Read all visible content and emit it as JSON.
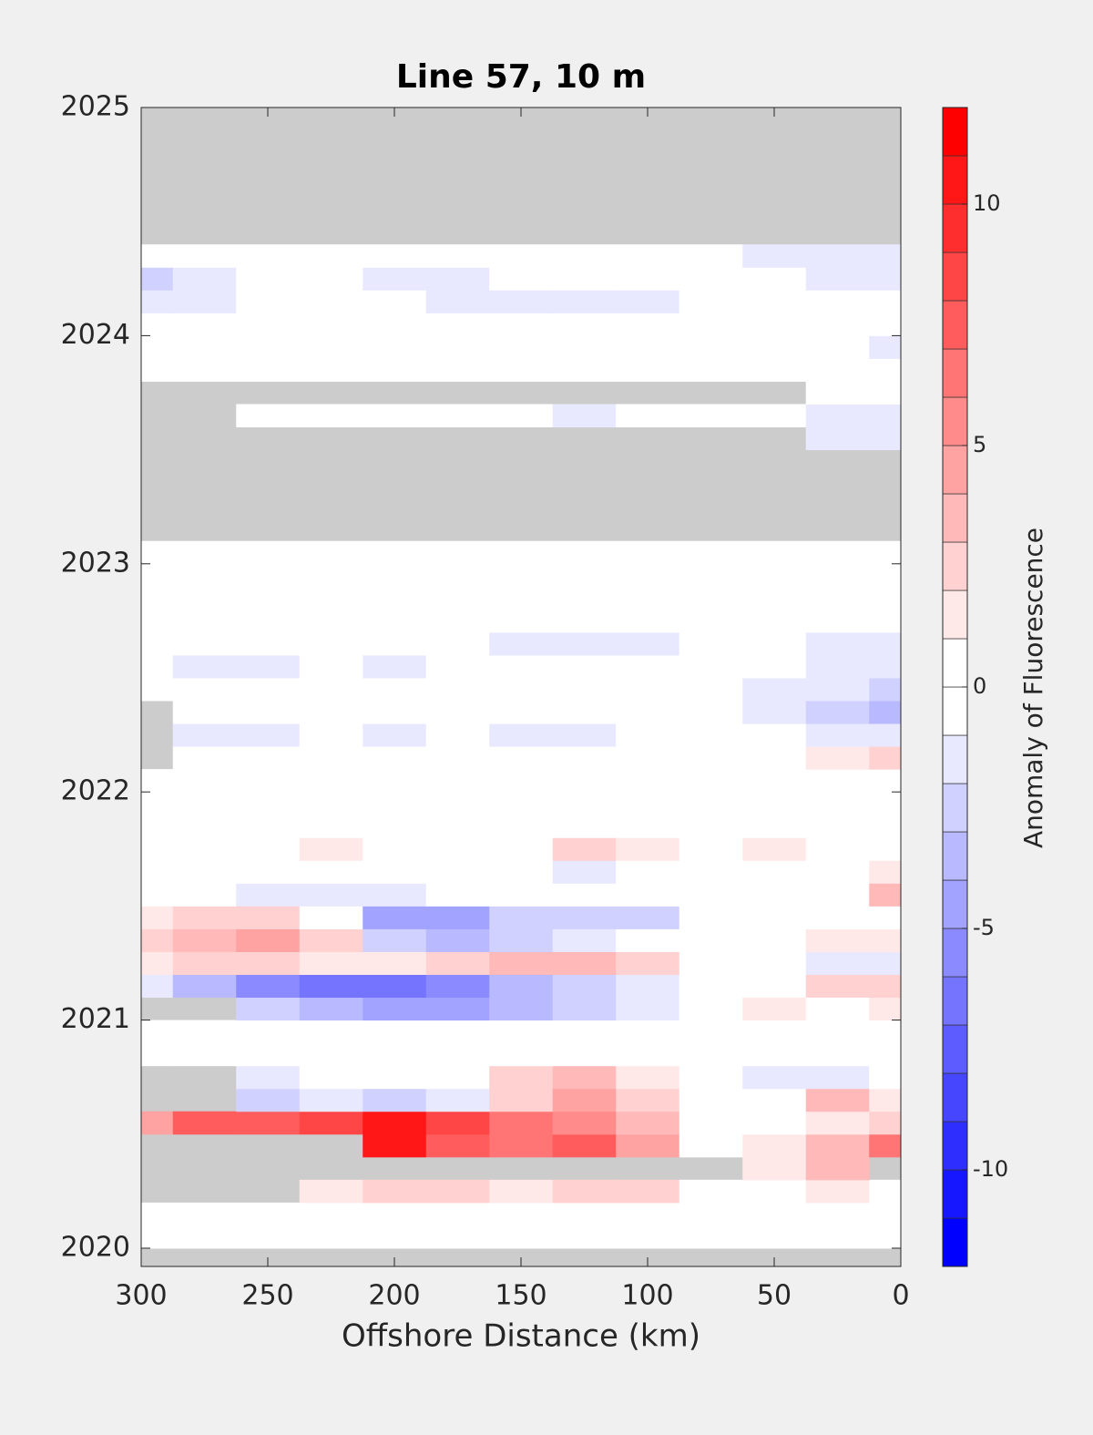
{
  "chart_data": {
    "type": "contour",
    "title": "Line 57, 10 m",
    "xlabel": "Offshore Distance (km)",
    "colorbar_label": "Anomaly of Fluorescence",
    "xlim": [
      300,
      0
    ],
    "xticks": [
      300,
      250,
      200,
      150,
      100,
      50,
      0
    ],
    "ylim": [
      2019.92,
      2025
    ],
    "yticks": [
      2020,
      2021,
      2022,
      2023,
      2024,
      2025
    ],
    "clim": [
      -12,
      12
    ],
    "cticks": [
      -10,
      -5,
      0,
      5,
      10
    ],
    "level_step": 1,
    "min_color": "#0000ff",
    "max_color": "#ff0000",
    "mid_color": "#ffffff",
    "nan_color": "#cccccc",
    "x": [
      300,
      275,
      250,
      225,
      200,
      175,
      150,
      125,
      100,
      75,
      50,
      25,
      0
    ],
    "y": [
      2019.95,
      2020.05,
      2020.15,
      2020.25,
      2020.35,
      2020.45,
      2020.55,
      2020.65,
      2020.75,
      2020.85,
      2020.95,
      2021.05,
      2021.15,
      2021.25,
      2021.35,
      2021.45,
      2021.55,
      2021.65,
      2021.75,
      2021.85,
      2021.95,
      2022.05,
      2022.15,
      2022.25,
      2022.35,
      2022.45,
      2022.55,
      2022.65,
      2022.75,
      2022.85,
      2022.95,
      2023.05,
      2023.15,
      2023.25,
      2023.35,
      2023.45,
      2023.55,
      2023.65,
      2023.75,
      2023.85,
      2023.95,
      2024.05,
      2024.15,
      2024.25,
      2024.35,
      2024.45,
      2024.55,
      2024.65,
      2024.75,
      2024.85,
      2024.95
    ],
    "z": [
      [
        null,
        null,
        null,
        null,
        null,
        null,
        null,
        null,
        null,
        null,
        null,
        null,
        null
      ],
      [
        0,
        0,
        0,
        0,
        0,
        0,
        0,
        0,
        0,
        0,
        0,
        0,
        0
      ],
      [
        0,
        0,
        0,
        0,
        0,
        0,
        0,
        0,
        0,
        0,
        0,
        0,
        0
      ],
      [
        null,
        null,
        null,
        1,
        2,
        2,
        1,
        2,
        2,
        0,
        0,
        1,
        0
      ],
      [
        null,
        null,
        null,
        null,
        null,
        null,
        null,
        null,
        null,
        null,
        1,
        3,
        null
      ],
      [
        null,
        null,
        null,
        null,
        10,
        7,
        6,
        7,
        4,
        0,
        1,
        3,
        6
      ],
      [
        4,
        7,
        7,
        8,
        10,
        8,
        6,
        5,
        3,
        0,
        0,
        1,
        2
      ],
      [
        null,
        null,
        -2,
        -1,
        -2,
        -1,
        2,
        4,
        2,
        0,
        0,
        3,
        1
      ],
      [
        null,
        null,
        -1,
        0,
        0,
        0,
        2,
        3,
        1,
        0,
        -1,
        -1,
        0
      ],
      [
        0,
        0,
        0,
        0,
        0,
        0,
        0,
        0,
        0,
        0,
        0,
        0,
        0
      ],
      [
        0,
        0,
        0,
        0,
        0,
        0,
        0,
        0,
        0,
        0,
        0,
        0,
        0
      ],
      [
        null,
        null,
        -2,
        -3,
        -4,
        -4,
        -3,
        -2,
        -1,
        0,
        1,
        0,
        1
      ],
      [
        -1,
        -3,
        -5,
        -6,
        -6,
        -5,
        -3,
        -2,
        -1,
        0,
        0,
        2,
        2
      ],
      [
        1,
        2,
        2,
        1,
        1,
        2,
        3,
        3,
        2,
        0,
        0,
        -1,
        -1
      ],
      [
        2,
        3,
        4,
        2,
        -2,
        -3,
        -2,
        -1,
        0,
        0,
        0,
        1,
        1
      ],
      [
        1,
        2,
        2,
        0,
        -4,
        -4,
        -2,
        -2,
        -2,
        0,
        0,
        0,
        0
      ],
      [
        0,
        0,
        -1,
        -1,
        -1,
        0,
        0,
        0,
        0,
        0,
        0,
        0,
        3
      ],
      [
        0,
        0,
        0,
        0,
        0,
        0,
        0,
        -1,
        0,
        0,
        0,
        0,
        1
      ],
      [
        0,
        0,
        0,
        1,
        0,
        0,
        0,
        2,
        1,
        0,
        1,
        0,
        0
      ],
      [
        0,
        0,
        0,
        0,
        0,
        0,
        0,
        0,
        0,
        0,
        0,
        0,
        0
      ],
      [
        0,
        0,
        0,
        0,
        0,
        0,
        0,
        0,
        0,
        0,
        0,
        0,
        0
      ],
      [
        0,
        0,
        0,
        0,
        0,
        0,
        0,
        0,
        0,
        0,
        0,
        0,
        0
      ],
      [
        null,
        0,
        0,
        0,
        0,
        0,
        0,
        0,
        0,
        0,
        0,
        1,
        2
      ],
      [
        null,
        -1,
        -1,
        0,
        -1,
        0,
        -1,
        -1,
        0,
        0,
        0,
        -1,
        -1
      ],
      [
        null,
        0,
        0,
        0,
        0,
        0,
        0,
        0,
        0,
        0,
        -1,
        -2,
        -3
      ],
      [
        0,
        0,
        0,
        0,
        0,
        0,
        0,
        0,
        0,
        0,
        -1,
        -1,
        -2
      ],
      [
        0,
        -1,
        -1,
        0,
        -1,
        0,
        0,
        0,
        0,
        0,
        0,
        -1,
        -1
      ],
      [
        0,
        0,
        0,
        0,
        0,
        0,
        -1,
        -1,
        -1,
        0,
        0,
        -1,
        -1
      ],
      [
        0,
        0,
        0,
        0,
        0,
        0,
        0,
        0,
        0,
        0,
        0,
        0,
        0
      ],
      [
        0,
        0,
        0,
        0,
        0,
        0,
        0,
        0,
        0,
        0,
        0,
        0,
        0
      ],
      [
        0,
        0,
        0,
        0,
        0,
        0,
        0,
        0,
        0,
        0,
        0,
        0,
        0
      ],
      [
        0,
        0,
        0,
        0,
        0,
        0,
        0,
        0,
        0,
        0,
        0,
        0,
        0
      ],
      [
        null,
        null,
        null,
        null,
        null,
        null,
        null,
        null,
        null,
        null,
        null,
        null,
        null
      ],
      [
        null,
        null,
        null,
        null,
        null,
        null,
        null,
        null,
        null,
        null,
        null,
        null,
        null
      ],
      [
        null,
        null,
        null,
        null,
        null,
        null,
        null,
        null,
        null,
        null,
        null,
        null,
        null
      ],
      [
        null,
        null,
        null,
        null,
        null,
        null,
        null,
        null,
        null,
        null,
        null,
        null,
        null
      ],
      [
        null,
        null,
        null,
        null,
        null,
        null,
        null,
        null,
        null,
        null,
        null,
        -1,
        -1
      ],
      [
        null,
        null,
        0,
        0,
        0,
        0,
        0,
        -1,
        0,
        0,
        0,
        -1,
        -1
      ],
      [
        null,
        null,
        null,
        null,
        null,
        null,
        null,
        null,
        null,
        null,
        null,
        0,
        0
      ],
      [
        0,
        0,
        0,
        0,
        0,
        0,
        0,
        0,
        0,
        0,
        0,
        0,
        0
      ],
      [
        0,
        0,
        0,
        0,
        0,
        0,
        0,
        0,
        0,
        0,
        0,
        0,
        -1
      ],
      [
        0,
        0,
        0,
        0,
        0,
        0,
        0,
        0,
        0,
        0,
        0,
        0,
        0
      ],
      [
        -1,
        -1,
        0,
        0,
        0,
        -1,
        -1,
        -1,
        -1,
        0,
        0,
        0,
        0
      ],
      [
        -2,
        -1,
        0,
        0,
        -1,
        -1,
        0,
        0,
        0,
        0,
        0,
        -1,
        -1
      ],
      [
        0,
        0,
        0,
        0,
        0,
        0,
        0,
        0,
        0,
        0,
        -1,
        -1,
        -1
      ],
      [
        null,
        null,
        null,
        null,
        null,
        null,
        null,
        null,
        null,
        null,
        null,
        null,
        null
      ],
      [
        null,
        null,
        null,
        null,
        null,
        null,
        null,
        null,
        null,
        null,
        null,
        null,
        null
      ],
      [
        null,
        null,
        null,
        null,
        null,
        null,
        null,
        null,
        null,
        null,
        null,
        null,
        null
      ],
      [
        null,
        null,
        null,
        null,
        null,
        null,
        null,
        null,
        null,
        null,
        null,
        null,
        null
      ],
      [
        null,
        null,
        null,
        null,
        null,
        null,
        null,
        null,
        null,
        null,
        null,
        null,
        null
      ],
      [
        null,
        null,
        null,
        null,
        null,
        null,
        null,
        null,
        null,
        null,
        null,
        null,
        null
      ]
    ]
  }
}
